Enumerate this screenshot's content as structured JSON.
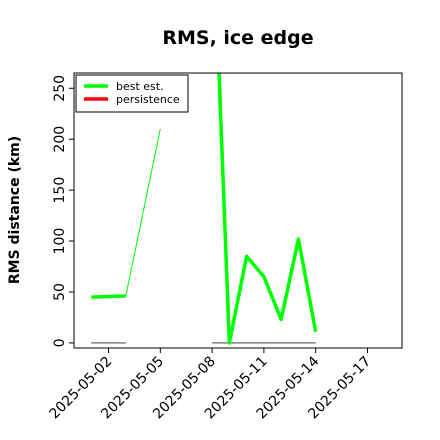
{
  "chart_data": {
    "type": "line",
    "title": "RMS, ice edge",
    "xlabel": "",
    "ylabel": "RMS distance (km)",
    "ylim": [
      -5,
      265
    ],
    "xlim": [
      "2025-04-30",
      "2025-05-19"
    ],
    "yticks": [
      0,
      50,
      100,
      150,
      200,
      250
    ],
    "xticks": [
      "2025-05-02",
      "2025-05-05",
      "2025-05-08",
      "2025-05-11",
      "2025-05-14",
      "2025-05-17"
    ],
    "legend": {
      "placement": "top-left"
    },
    "grid": false,
    "series": [
      {
        "name": "best est.",
        "color": "#00ff00",
        "points": [
          {
            "x": "2025-05-01",
            "y": 45
          },
          {
            "x": "2025-05-03",
            "y": 46
          }
        ],
        "connector_points": [
          {
            "x": "2025-05-03",
            "y": 46
          },
          {
            "x": "2025-05-05",
            "y": 210
          }
        ],
        "segment_points": [
          {
            "x": "2025-05-08.4",
            "y": 265
          },
          {
            "x": "2025-05-09",
            "y": 0
          },
          {
            "x": "2025-05-10",
            "y": 85
          },
          {
            "x": "2025-05-11",
            "y": 65
          },
          {
            "x": "2025-05-12",
            "y": 23
          },
          {
            "x": "2025-05-13",
            "y": 102
          },
          {
            "x": "2025-05-14",
            "y": 11
          }
        ]
      },
      {
        "name": "persistence",
        "color": "#ff0000",
        "points": []
      }
    ],
    "zero_lines": [
      {
        "x_start": "2025-05-01",
        "x_end": "2025-05-03",
        "y": 0,
        "color": "#808080"
      },
      {
        "x_start": "2025-05-08",
        "x_end": "2025-05-14",
        "y": 0,
        "color": "#808080"
      }
    ]
  }
}
